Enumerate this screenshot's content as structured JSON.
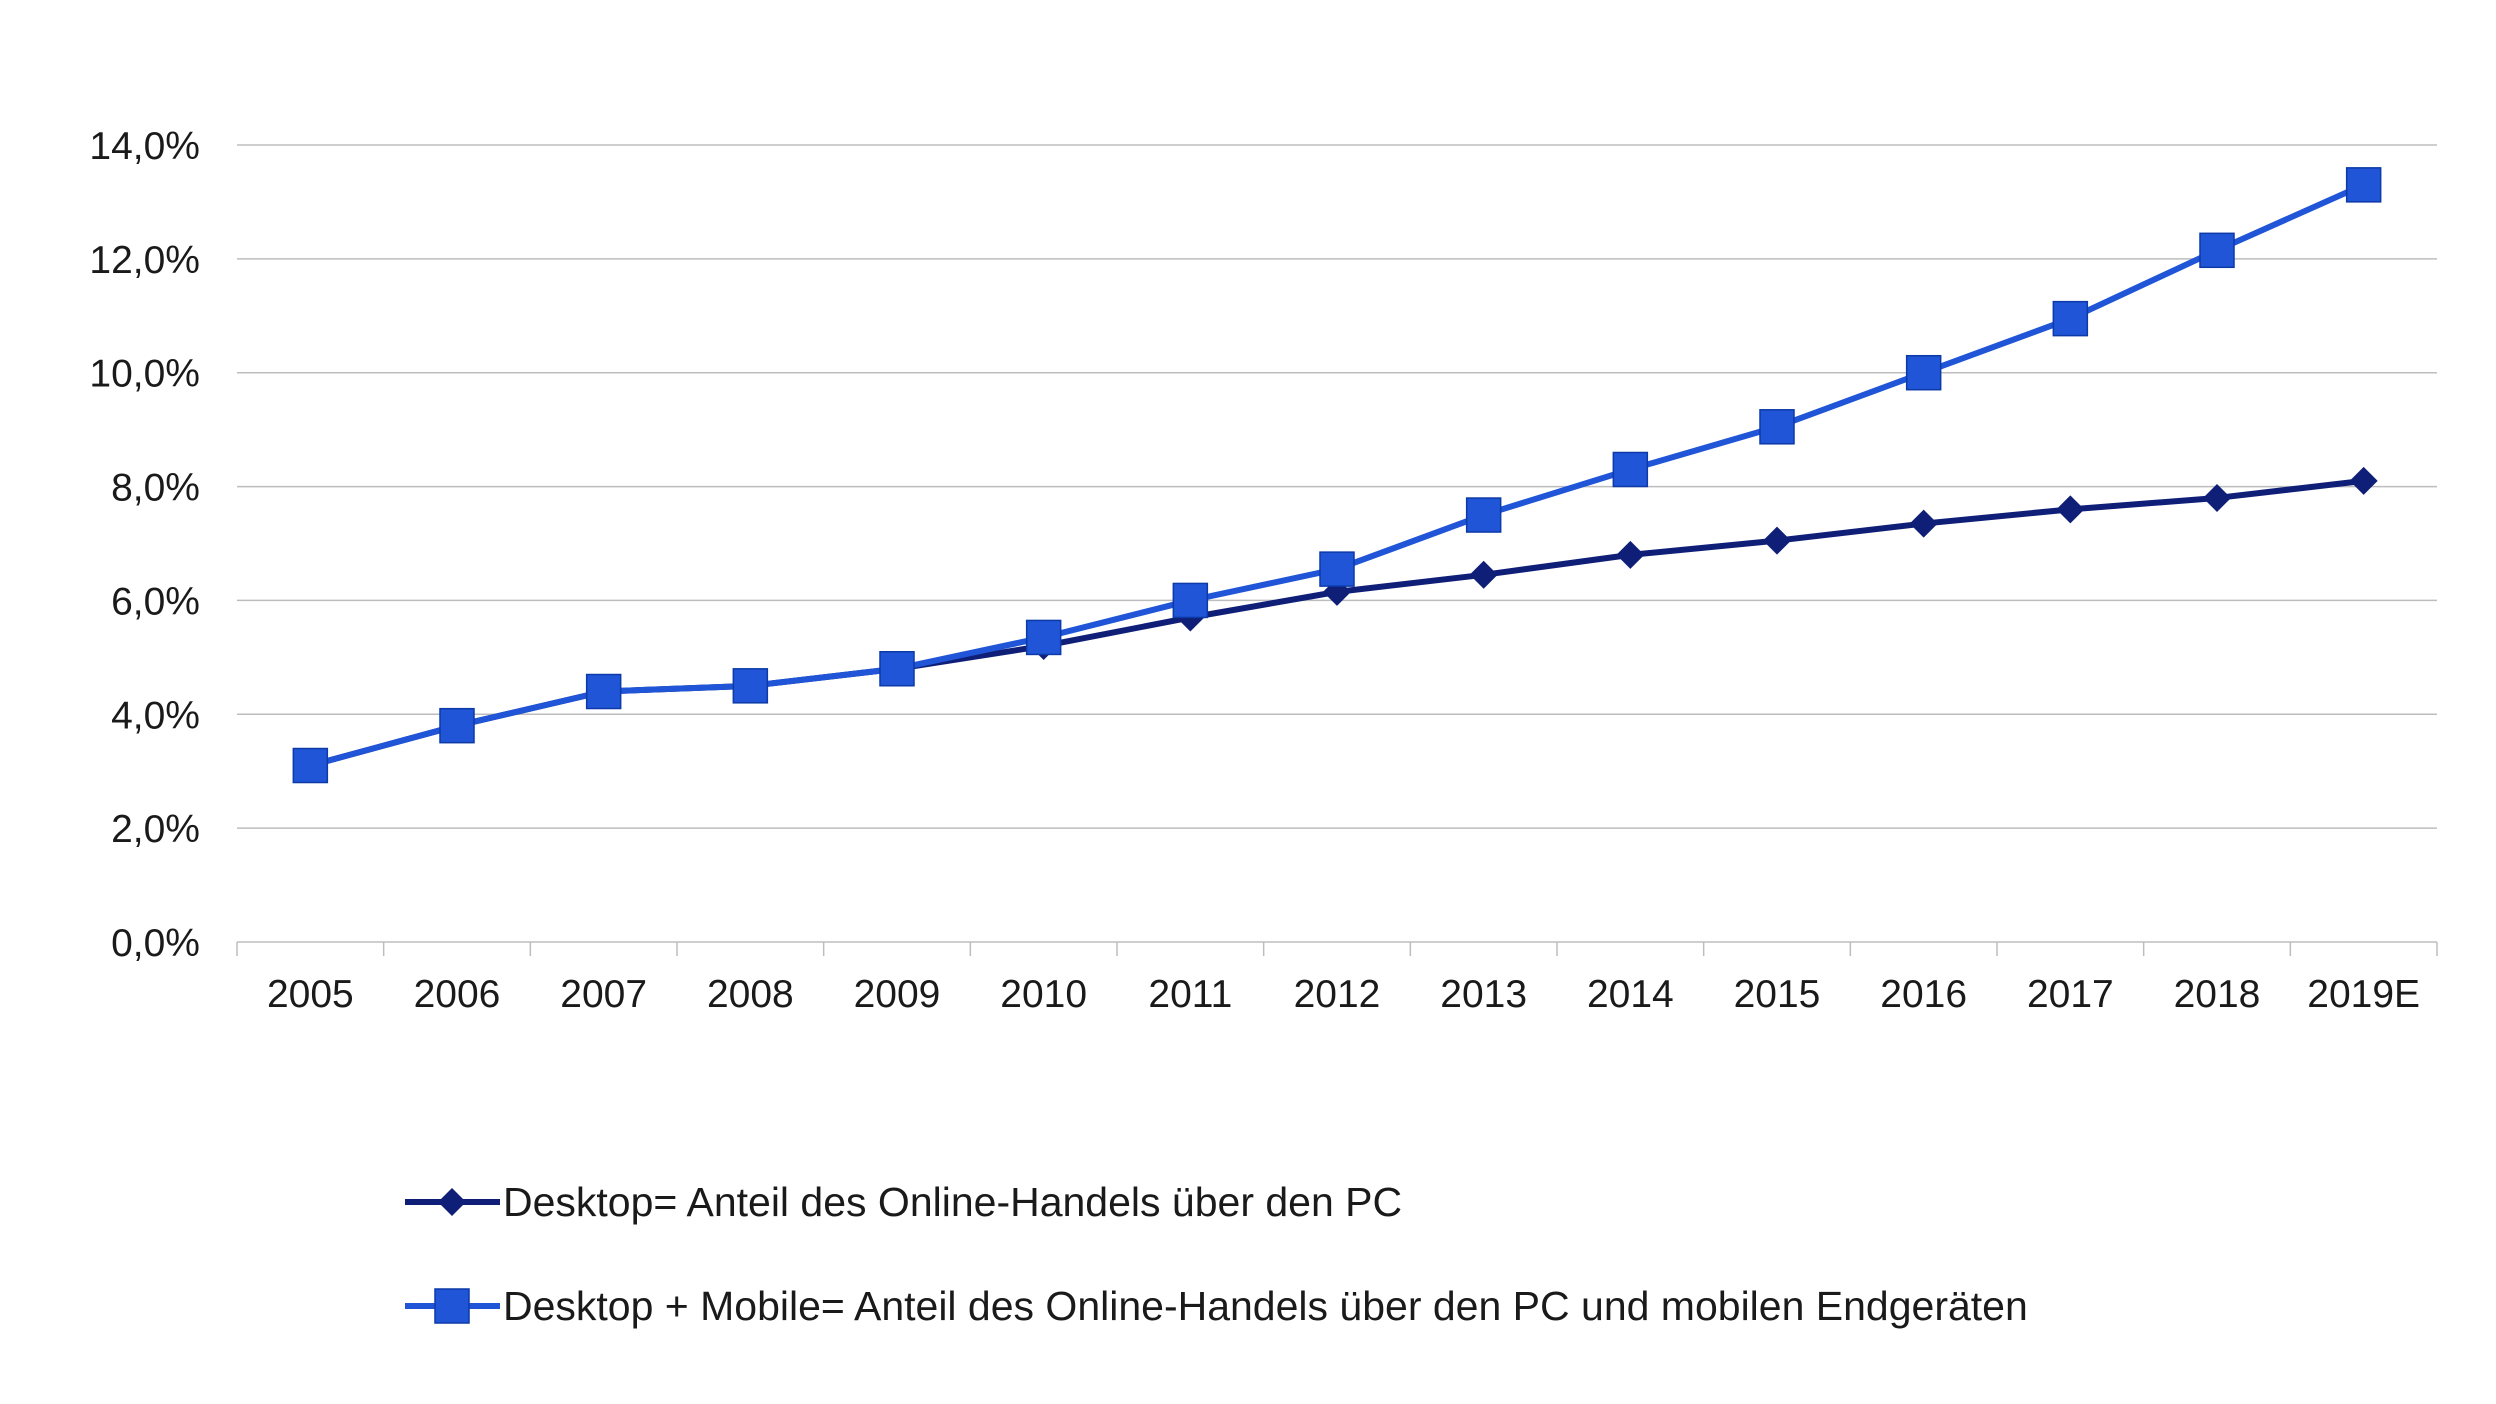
{
  "chart_data": {
    "type": "line",
    "title": "",
    "xlabel": "",
    "ylabel": "",
    "categories": [
      "2005",
      "2006",
      "2007",
      "2008",
      "2009",
      "2010",
      "2011",
      "2012",
      "2013",
      "2014",
      "2015",
      "2016",
      "2017",
      "2018",
      "2019E"
    ],
    "ylim": [
      0,
      14
    ],
    "yticks": [
      0,
      2,
      4,
      6,
      8,
      10,
      12,
      14
    ],
    "ytick_labels": [
      "0,0%",
      "2,0%",
      "4,0%",
      "6,0%",
      "8,0%",
      "10,0%",
      "12,0%",
      "14,0%"
    ],
    "grid": true,
    "legend_position": "bottom",
    "series": [
      {
        "name": "Desktop= Anteil des Online-Handels über den PC",
        "marker": "diamond",
        "color": "#0f1f78",
        "values": [
          3.1,
          3.8,
          4.4,
          4.5,
          4.8,
          5.2,
          5.7,
          6.15,
          6.45,
          6.8,
          7.05,
          7.35,
          7.6,
          7.8,
          8.1
        ]
      },
      {
        "name": "Desktop + Mobile= Anteil des Online-Handels über den PC und mobilen Endgeräten",
        "marker": "square",
        "color": "#1f55d6",
        "values": [
          3.1,
          3.8,
          4.4,
          4.5,
          4.8,
          5.35,
          6.0,
          6.55,
          7.5,
          8.3,
          9.05,
          10.0,
          10.95,
          12.15,
          13.3
        ]
      }
    ]
  }
}
